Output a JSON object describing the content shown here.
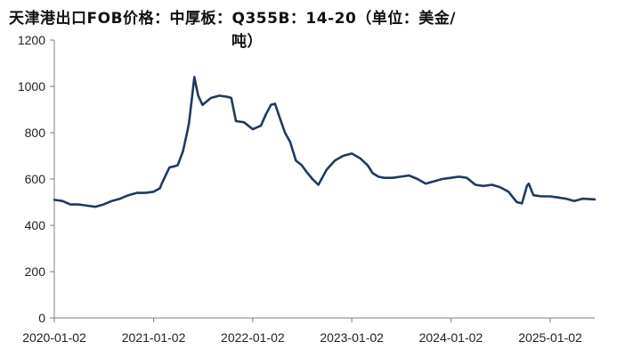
{
  "chart_data": {
    "type": "line",
    "title_line1": "天津港出口FOB价格：中厚板：Q355B：14-20（单位：美金/",
    "title_line2": "吨）",
    "xlabel": "",
    "ylabel": "",
    "ylim": [
      0,
      1200
    ],
    "yticks": [
      "0",
      "200",
      "400",
      "600",
      "800",
      "1000",
      "1200"
    ],
    "xticks": [
      "2020-01-02",
      "2021-01-02",
      "2022-01-02",
      "2023-01-02",
      "2024-01-02",
      "2025-01-02"
    ],
    "x_range": [
      "2020-01-02",
      "2025-06-15"
    ],
    "grid": false,
    "legend": "none",
    "line_color": "#1f3a5f",
    "series": [
      {
        "x": [
          "2020-01-02",
          "2020-02-01",
          "2020-03-01",
          "2020-04-01",
          "2020-05-01",
          "2020-06-01",
          "2020-07-01",
          "2020-08-01",
          "2020-09-01",
          "2020-10-01",
          "2020-11-01",
          "2020-12-01",
          "2021-01-02",
          "2021-01-25",
          "2021-02-01",
          "2021-03-01",
          "2021-03-20",
          "2021-04-01",
          "2021-04-20",
          "2021-05-05",
          "2021-05-12",
          "2021-05-20",
          "2021-06-01",
          "2021-06-15",
          "2021-07-01",
          "2021-08-01",
          "2021-09-01",
          "2021-10-01",
          "2021-10-15",
          "2021-11-01",
          "2021-12-01",
          "2022-01-02",
          "2022-02-01",
          "2022-02-20",
          "2022-03-10",
          "2022-03-25",
          "2022-04-10",
          "2022-05-01",
          "2022-05-20",
          "2022-06-10",
          "2022-07-01",
          "2022-07-20",
          "2022-08-10",
          "2022-09-01",
          "2022-10-01",
          "2022-11-01",
          "2022-12-01",
          "2023-01-02",
          "2023-02-01",
          "2023-03-01",
          "2023-03-20",
          "2023-04-10",
          "2023-05-01",
          "2023-06-01",
          "2023-07-01",
          "2023-08-01",
          "2023-09-01",
          "2023-10-01",
          "2023-11-01",
          "2023-12-01",
          "2024-01-02",
          "2024-02-01",
          "2024-03-01",
          "2024-04-01",
          "2024-05-01",
          "2024-06-01",
          "2024-07-01",
          "2024-08-01",
          "2024-09-01",
          "2024-09-20",
          "2024-10-08",
          "2024-10-15",
          "2024-11-01",
          "2024-12-01",
          "2025-01-02",
          "2025-02-01",
          "2025-03-01",
          "2025-04-01",
          "2025-05-01",
          "2025-06-15"
        ],
        "y": [
          510,
          505,
          490,
          490,
          485,
          480,
          490,
          505,
          515,
          530,
          540,
          540,
          545,
          560,
          580,
          650,
          655,
          660,
          720,
          800,
          840,
          920,
          1040,
          960,
          920,
          950,
          960,
          955,
          950,
          850,
          845,
          815,
          830,
          880,
          920,
          925,
          870,
          800,
          760,
          680,
          660,
          630,
          600,
          575,
          640,
          680,
          700,
          710,
          690,
          660,
          625,
          610,
          605,
          605,
          610,
          615,
          600,
          580,
          590,
          600,
          605,
          610,
          605,
          575,
          570,
          575,
          565,
          545,
          500,
          495,
          570,
          580,
          530,
          525,
          525,
          520,
          515,
          505,
          515,
          512
        ]
      }
    ]
  }
}
